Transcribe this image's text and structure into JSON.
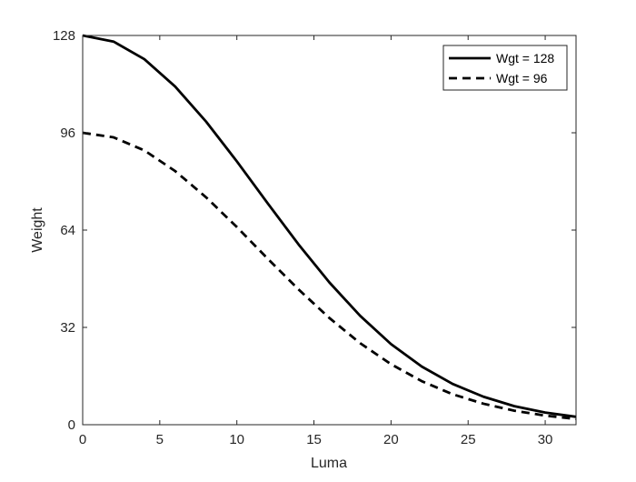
{
  "chart_data": {
    "type": "line",
    "xlabel": "Luma",
    "ylabel": "Weight",
    "xlim": [
      0,
      32
    ],
    "ylim": [
      0,
      128
    ],
    "xticks": [
      0,
      5,
      10,
      15,
      20,
      25,
      30
    ],
    "yticks": [
      0,
      32,
      64,
      96,
      128
    ],
    "grid": false,
    "legend_position": "top-right",
    "series": [
      {
        "name": "Wgt = 128",
        "line_style": "solid",
        "color": "#000000",
        "x": [
          0,
          2,
          4,
          6,
          8,
          10,
          12,
          14,
          16,
          18,
          20,
          22,
          24,
          26,
          28,
          30,
          32
        ],
        "y": [
          128.0,
          126.0,
          120.2,
          111.2,
          99.7,
          86.6,
          72.8,
          59.3,
          46.8,
          35.8,
          26.5,
          19.1,
          13.4,
          9.2,
          6.1,
          4.0,
          2.6
        ]
      },
      {
        "name": "Wgt = 96",
        "line_style": "dashed",
        "color": "#000000",
        "x": [
          0,
          2,
          4,
          6,
          8,
          10,
          12,
          14,
          16,
          18,
          20,
          22,
          24,
          26,
          28,
          30,
          32
        ],
        "y": [
          96.0,
          94.5,
          90.2,
          83.4,
          74.8,
          65.0,
          54.6,
          44.5,
          35.1,
          26.8,
          19.9,
          14.3,
          10.0,
          6.9,
          4.6,
          3.0,
          1.9
        ]
      }
    ]
  }
}
